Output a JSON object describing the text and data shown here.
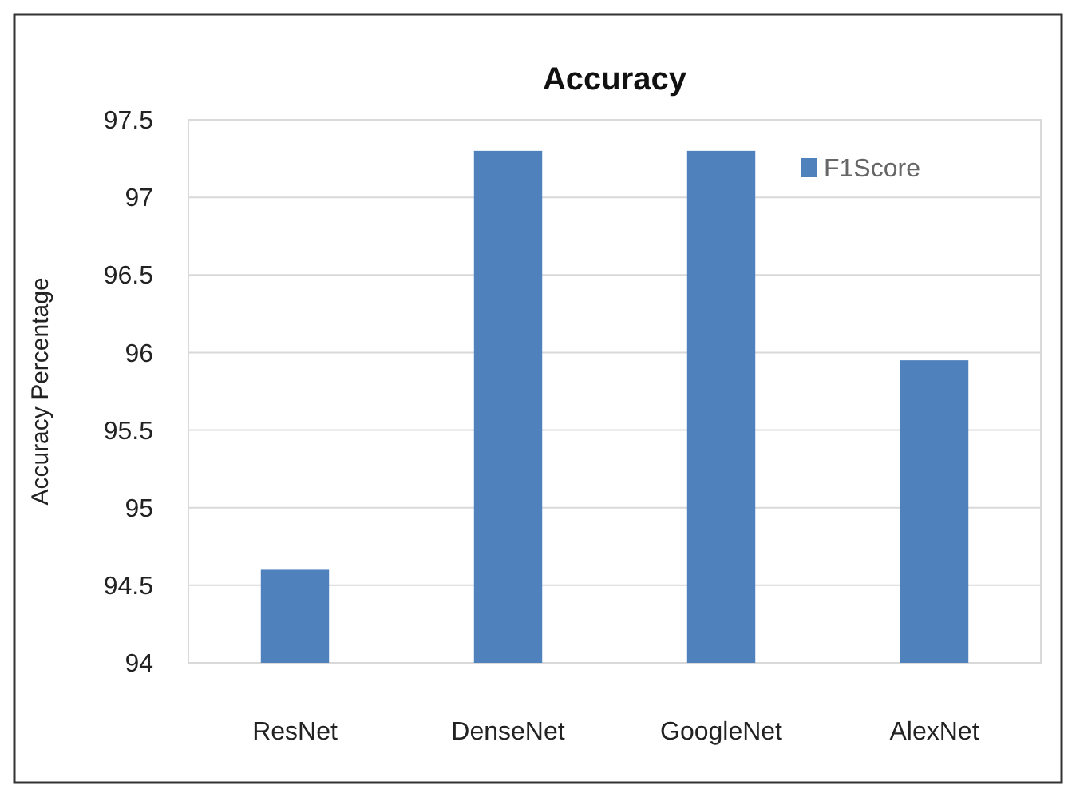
{
  "chart_data": {
    "type": "bar",
    "title": "Accuracy",
    "ylabel": "Accuracy Percentage",
    "categories": [
      "ResNet",
      "DenseNet",
      "GoogleNet",
      "AlexNet"
    ],
    "series": [
      {
        "name": "F1Score",
        "color": "#4f81bd",
        "values": [
          94.6,
          97.3,
          97.3,
          95.95
        ]
      }
    ],
    "ylim": [
      94,
      97.5
    ],
    "yticks": [
      94,
      94.5,
      95,
      95.5,
      96,
      96.5,
      97,
      97.5
    ],
    "grid": "y",
    "legend": "top right"
  }
}
